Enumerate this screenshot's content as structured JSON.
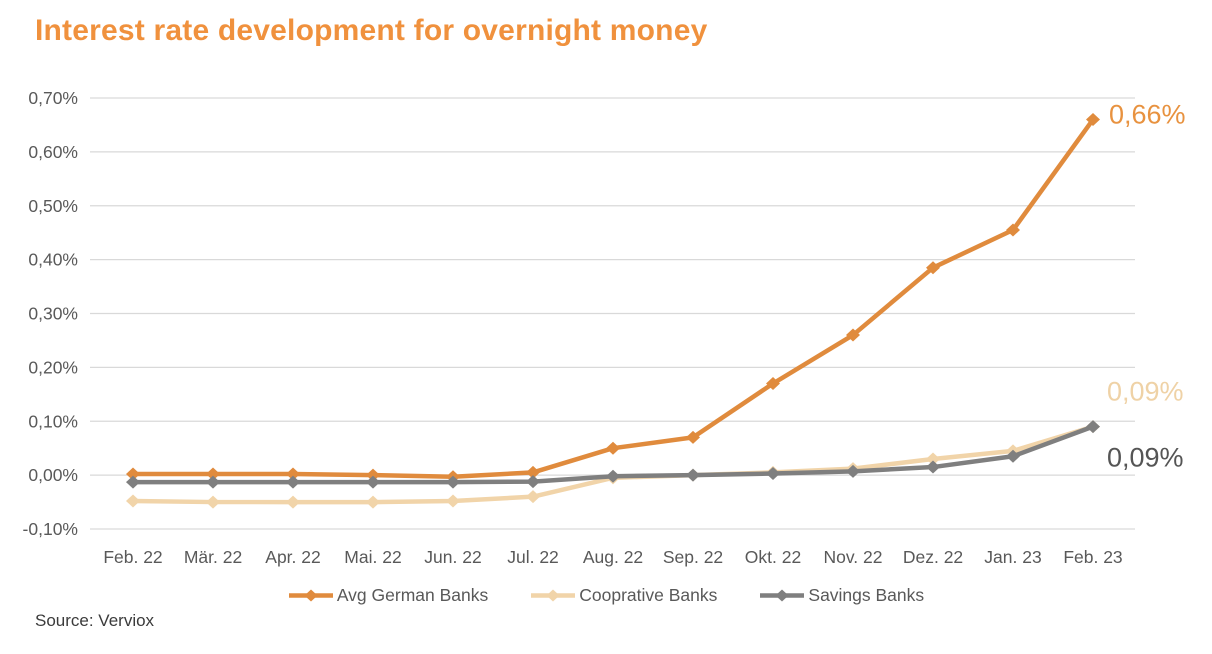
{
  "title": "Interest rate development for overnight money",
  "source": "Source: Verviox",
  "colors": {
    "background": "#ffffff",
    "title": "#F0913D",
    "grid": "#D9D9D9",
    "tick_text": "#595959",
    "legend_text": "#595959",
    "source_text": "#3B3B3B"
  },
  "chart_data": {
    "type": "line",
    "title": "Interest rate development for overnight money",
    "xlabel": "",
    "ylabel": "",
    "grid": true,
    "legend_position": "bottom",
    "marker": "diamond",
    "categories": [
      "Feb. 22",
      "Mär. 22",
      "Apr. 22",
      "Mai. 22",
      "Jun. 22",
      "Jul. 22",
      "Aug. 22",
      "Sep. 22",
      "Okt. 22",
      "Nov. 22",
      "Dez. 22",
      "Jan. 23",
      "Feb. 23"
    ],
    "y_ticks": [
      "0,70%",
      "0,60%",
      "0,50%",
      "0,40%",
      "0,30%",
      "0,20%",
      "0,10%",
      "0,00%",
      "-0,10%"
    ],
    "y_tick_values": [
      0.7,
      0.6,
      0.5,
      0.4,
      0.3,
      0.2,
      0.1,
      0.0,
      -0.1
    ],
    "ylim": [
      -0.1,
      0.7
    ],
    "unit": "%",
    "series": [
      {
        "name": "Avg German Banks",
        "color": "#E08B3D",
        "label_color": "#E8923F",
        "values": [
          0.002,
          0.002,
          0.002,
          0.0,
          -0.003,
          0.005,
          0.05,
          0.07,
          0.17,
          0.26,
          0.385,
          0.455,
          0.66
        ],
        "end_label": "0,66%"
      },
      {
        "name": "Cooprative Banks",
        "color": "#F1D4A9",
        "label_color": "#EFD2A6",
        "values": [
          -0.048,
          -0.05,
          -0.05,
          -0.05,
          -0.048,
          -0.04,
          -0.005,
          0.0,
          0.005,
          0.012,
          0.03,
          0.045,
          0.09
        ],
        "end_label": "0,09%"
      },
      {
        "name": "Savings Banks",
        "color": "#7F7F7F",
        "label_color": "#555555",
        "values": [
          -0.013,
          -0.013,
          -0.013,
          -0.013,
          -0.013,
          -0.012,
          -0.002,
          0.0,
          0.003,
          0.007,
          0.015,
          0.035,
          0.09
        ],
        "end_label": "0,09%"
      }
    ]
  }
}
